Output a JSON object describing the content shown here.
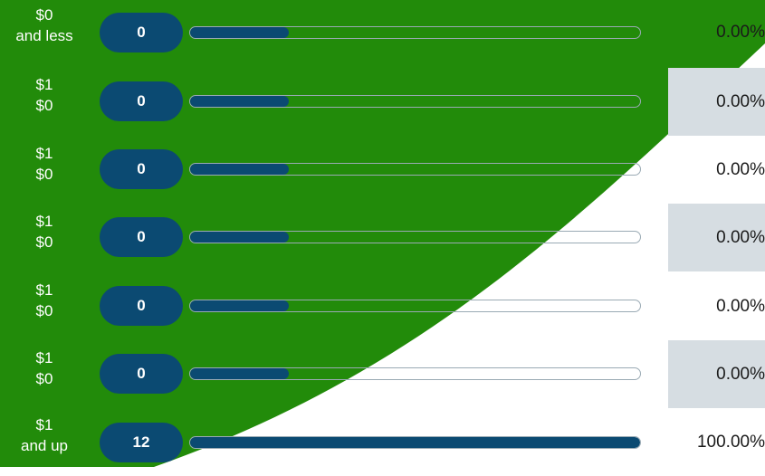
{
  "colors": {
    "background_green": "#228b0a",
    "count_pill": "#0b4a72",
    "bar_fill": "#0b4a72",
    "bar_track_border": "#9aaab4",
    "pct_shade": "#d6dde2"
  },
  "rows": [
    {
      "label_line1": "$0",
      "label_line2": "and less",
      "count": "0",
      "fill_fraction": 0.22,
      "pct": "0.00%",
      "shaded": false
    },
    {
      "label_line1": "$1",
      "label_line2": "$0",
      "count": "0",
      "fill_fraction": 0.22,
      "pct": "0.00%",
      "shaded": true
    },
    {
      "label_line1": "$1",
      "label_line2": "$0",
      "count": "0",
      "fill_fraction": 0.22,
      "pct": "0.00%",
      "shaded": false
    },
    {
      "label_line1": "$1",
      "label_line2": "$0",
      "count": "0",
      "fill_fraction": 0.22,
      "pct": "0.00%",
      "shaded": true
    },
    {
      "label_line1": "$1",
      "label_line2": "$0",
      "count": "0",
      "fill_fraction": 0.22,
      "pct": "0.00%",
      "shaded": false
    },
    {
      "label_line1": "$1",
      "label_line2": "$0",
      "count": "0",
      "fill_fraction": 0.22,
      "pct": "0.00%",
      "shaded": true
    },
    {
      "label_line1": "$1",
      "label_line2": "and up",
      "count": "12",
      "fill_fraction": 1.0,
      "pct": "100.00%",
      "shaded": false
    }
  ]
}
